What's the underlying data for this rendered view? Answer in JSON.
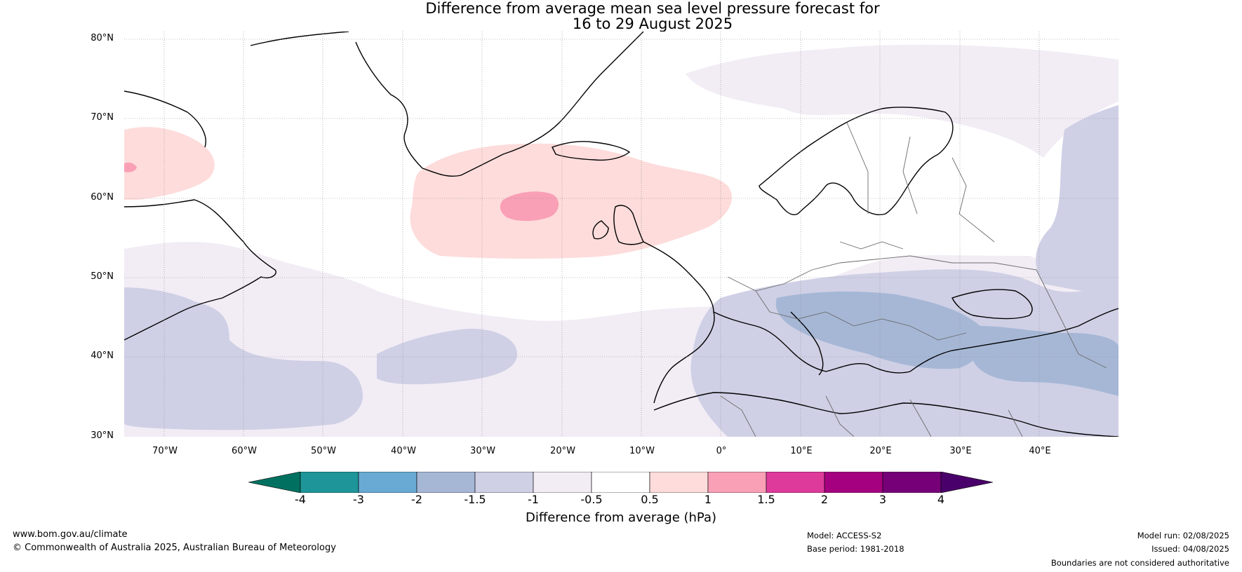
{
  "title_line1": "Difference from average mean sea level pressure forecast for",
  "title_line2": "16 to 29 August 2025",
  "lat_labels": [
    "80°N",
    "70°N",
    "60°N",
    "50°N",
    "40°N",
    "30°N"
  ],
  "lon_labels": [
    "70°W",
    "60°W",
    "50°W",
    "40°W",
    "30°W",
    "20°W",
    "10°W",
    "0°",
    "10°E",
    "20°E",
    "30°E",
    "40°E"
  ],
  "map_extent": {
    "lon_min": -75,
    "lon_max": 50,
    "lat_min": 30,
    "lat_max": 81
  },
  "colorbar": {
    "ticks": [
      "-4",
      "-3",
      "-2",
      "-1.5",
      "-1",
      "-0.5",
      "0.5",
      "1",
      "1.5",
      "2",
      "3",
      "4"
    ],
    "colors": [
      "#007160",
      "#1e9598",
      "#68aad3",
      "#a6b7d6",
      "#cfd0e5",
      "#f2ecf5",
      "#ffffff",
      "#fddcdb",
      "#f9a0b6",
      "#de3a9c",
      "#a50080",
      "#760078",
      "#4a006a"
    ],
    "label": "Difference from average (hPa)"
  },
  "footer": {
    "site": "www.bom.gov.au/climate",
    "copyright": "© Commonwealth of Australia 2025, Australian Bureau of Meteorology",
    "model": "Model: ACCESS-S2",
    "base_period": "Base period: 1981-2018",
    "model_run": "Model run: 02/08/2025",
    "issued": "Issued: 04/08/2025",
    "disclaimer": "Boundaries are not considered authoritative"
  }
}
